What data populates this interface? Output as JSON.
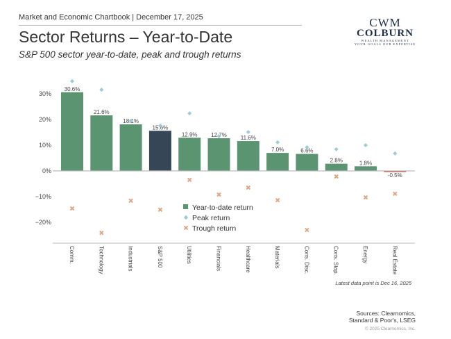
{
  "header": {
    "chartbook": "Market and Economic Chartbook | December 17, 2025",
    "title": "Sector Returns – Year-to-Date",
    "subtitle": "S&P 500 sector year-to-date, peak and trough returns"
  },
  "logo": {
    "monogram": "CWM",
    "name": "COLBURN",
    "tag1": "WEALTH MANAGEMENT",
    "tag2": "YOUR GOALS OUR EXPERTISE"
  },
  "footer": {
    "note": "Latest data point is Dec 16, 2025",
    "sources": "Sources: Clearnomics, Standard & Poor's, LSEG",
    "copyright": "© 2025 Clearnomics, Inc."
  },
  "chart_data": {
    "type": "bar",
    "categories": [
      "Comm.",
      "Technology",
      "Industrials",
      "S&P 500",
      "Utilities",
      "Financials",
      "Healthcare",
      "Materials",
      "Cons. Disc.",
      "Cons. Stap.",
      "Energy",
      "Real Estate"
    ],
    "series": [
      {
        "name": "Year-to-date return",
        "type": "bar",
        "values": [
          30.6,
          21.6,
          18.1,
          15.6,
          12.9,
          12.7,
          11.6,
          7.0,
          6.6,
          2.8,
          1.8,
          -0.5
        ],
        "labels": [
          "30.6%",
          "21.6%",
          "18.1%",
          "15.6%",
          "12.9%",
          "12.7%",
          "11.6%",
          "7.0%",
          "6.6%",
          "2.8%",
          "1.8%",
          "-0.5%"
        ]
      },
      {
        "name": "Peak return",
        "type": "scatter",
        "marker": "diamond",
        "values": [
          34.9,
          31.6,
          19.5,
          17.6,
          22.4,
          13.5,
          15.1,
          11.1,
          9.2,
          8.4,
          10.0,
          6.8
        ]
      },
      {
        "name": "Trough return",
        "type": "scatter",
        "marker": "x",
        "values": [
          -14.6,
          -24.1,
          -11.6,
          -15.1,
          -3.5,
          -9.2,
          -6.5,
          -11.4,
          -23.0,
          -2.2,
          -10.3,
          -8.9
        ]
      }
    ],
    "yticks": [
      30,
      20,
      10,
      0,
      -10,
      -20
    ],
    "ytick_labels": [
      "30%",
      "20%",
      "10%",
      "0%",
      "−10%",
      "−20%"
    ],
    "ylim": [
      -28,
      36
    ],
    "grid": false,
    "legend": "center",
    "colors": {
      "bar": "#5a9470",
      "highlight": "#364656",
      "negative": "#c95a5a",
      "peak": "#9ccbd6",
      "trough": "#e0a585",
      "axis": "#bbbbbb"
    }
  }
}
